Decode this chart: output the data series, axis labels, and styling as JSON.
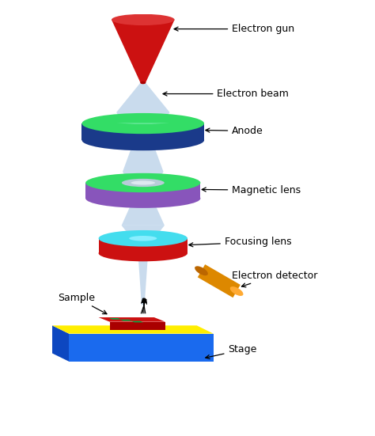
{
  "background_color": "#ffffff",
  "fig_width": 4.74,
  "fig_height": 5.51,
  "dpi": 100,
  "labels": {
    "electron_gun": "Electron gun",
    "electron_beam": "Electron beam",
    "anode": "Anode",
    "magnetic_lens": "Magnetic lens",
    "focusing_lens": "Focusing lens",
    "electron_detector": "Electron detector",
    "sample": "Sample",
    "stage": "Stage"
  },
  "colors": {
    "electron_gun_body": "#cc1111",
    "electron_gun_top": "#dd3333",
    "beam": "#b8d0e8",
    "anode_top": "#33dd66",
    "anode_side": "#1a3a8a",
    "magnetic_top": "#33dd66",
    "magnetic_side": "#8855bb",
    "magnetic_inner": "#b8ccd8",
    "focusing_top": "#44ddee",
    "focusing_side": "#cc1111",
    "stage_top": "#ffee00",
    "stage_front": "#1a6aee",
    "stage_left": "#0d47c0",
    "sample_body": "#cc1111",
    "sample_green": "#00aa44",
    "detector_body": "#dd8800",
    "detector_light": "#ffaa33",
    "text_color": "#000000"
  },
  "font_size": 9.0
}
